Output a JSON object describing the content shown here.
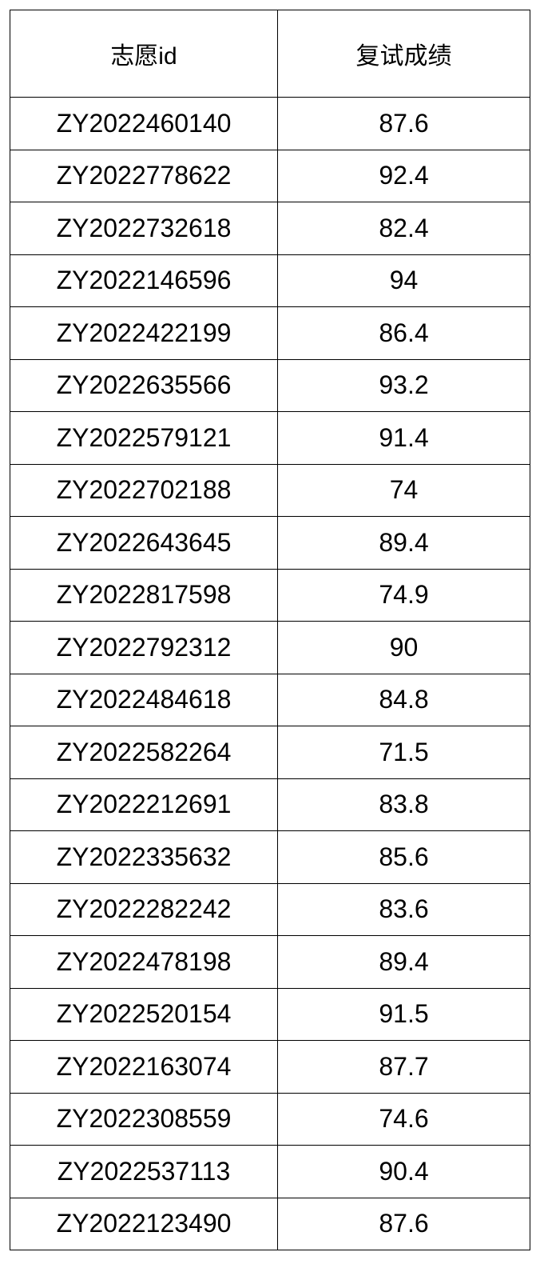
{
  "table": {
    "headers": [
      "志愿id",
      "复试成绩"
    ],
    "rows": [
      [
        "ZY2022460140",
        "87.6"
      ],
      [
        "ZY2022778622",
        "92.4"
      ],
      [
        "ZY2022732618",
        "82.4"
      ],
      [
        "ZY2022146596",
        "94"
      ],
      [
        "ZY2022422199",
        "86.4"
      ],
      [
        "ZY2022635566",
        "93.2"
      ],
      [
        "ZY2022579121",
        "91.4"
      ],
      [
        "ZY2022702188",
        "74"
      ],
      [
        "ZY2022643645",
        "89.4"
      ],
      [
        "ZY2022817598",
        "74.9"
      ],
      [
        "ZY2022792312",
        "90"
      ],
      [
        "ZY2022484618",
        "84.8"
      ],
      [
        "ZY2022582264",
        "71.5"
      ],
      [
        "ZY2022212691",
        "83.8"
      ],
      [
        "ZY2022335632",
        "85.6"
      ],
      [
        "ZY2022282242",
        "83.6"
      ],
      [
        "ZY2022478198",
        "89.4"
      ],
      [
        "ZY2022520154",
        "91.5"
      ],
      [
        "ZY2022163074",
        "87.7"
      ],
      [
        "ZY2022308559",
        "74.6"
      ],
      [
        "ZY2022537113",
        "90.4"
      ],
      [
        "ZY2022123490",
        "87.6"
      ]
    ]
  }
}
